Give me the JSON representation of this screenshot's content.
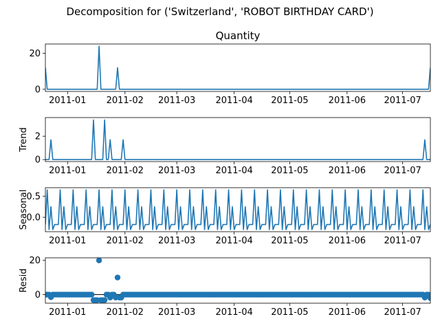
{
  "figure": {
    "suptitle": "Decomposition for ('Switzerland', 'ROBOT BIRTHDAY CARD')",
    "line_color": "#1f77b4"
  },
  "chart_data": [
    {
      "type": "line",
      "title": "Quantity",
      "ylabel": "",
      "x_range": [
        "2010-12-20",
        "2011-07-16"
      ],
      "ylim": [
        -1.2,
        25.2
      ],
      "yticks": [
        0,
        20
      ],
      "xticks": [
        "2011-01",
        "2011-02",
        "2011-03",
        "2011-04",
        "2011-05",
        "2011-06",
        "2011-07"
      ],
      "series_note_default": 0,
      "points": [
        [
          "2010-12-20",
          12
        ],
        [
          "2010-12-21",
          0
        ],
        [
          "2011-01-17",
          0
        ],
        [
          "2011-01-18",
          24
        ],
        [
          "2011-01-19",
          0
        ],
        [
          "2011-01-27",
          0
        ],
        [
          "2011-01-28",
          12
        ],
        [
          "2011-01-29",
          0
        ],
        [
          "2011-07-15",
          0
        ],
        [
          "2011-07-16",
          12
        ]
      ]
    },
    {
      "type": "line",
      "title": "",
      "ylabel": "Trend",
      "x_range": [
        "2010-12-20",
        "2011-07-16"
      ],
      "ylim": [
        -0.17,
        3.6
      ],
      "yticks": [
        0,
        2
      ],
      "xticks": [
        "2011-01",
        "2011-02",
        "2011-03",
        "2011-04",
        "2011-05",
        "2011-06",
        "2011-07"
      ],
      "points": [
        [
          "2010-12-23",
          1.7
        ],
        [
          "2010-12-24",
          0
        ],
        [
          "2011-01-14",
          0
        ],
        [
          "2011-01-15",
          3.4
        ],
        [
          "2011-01-21",
          3.4
        ],
        [
          "2011-01-22",
          0
        ],
        [
          "2011-01-23",
          0
        ],
        [
          "2011-01-24",
          1.7
        ],
        [
          "2011-01-31",
          1.7
        ],
        [
          "2011-02-01",
          0
        ],
        [
          "2011-07-12",
          0
        ],
        [
          "2011-07-13",
          1.7
        ]
      ]
    },
    {
      "type": "line",
      "title": "",
      "ylabel": "Seasonal",
      "x_range": [
        "2010-12-20",
        "2011-07-16"
      ],
      "ylim": [
        -0.34,
        0.7
      ],
      "yticks": [
        0.0,
        0.5
      ],
      "ytick_labels": [
        "0.0",
        "0.5"
      ],
      "xticks": [
        "2011-01",
        "2011-02",
        "2011-03",
        "2011-04",
        "2011-05",
        "2011-06",
        "2011-07"
      ],
      "period_days": 7,
      "period_start": "2010-12-20",
      "period_values": [
        -0.17,
        0.65,
        -0.29,
        0.25,
        -0.29,
        -0.17,
        -0.17
      ]
    },
    {
      "type": "scatter",
      "title": "",
      "ylabel": "Resid",
      "x_range": [
        "2010-12-20",
        "2011-07-16"
      ],
      "ylim": [
        -5,
        21.5
      ],
      "yticks": [
        0,
        20
      ],
      "xticks": [
        "2011-01",
        "2011-02",
        "2011-03",
        "2011-04",
        "2011-05",
        "2011-06",
        "2011-07"
      ],
      "zero_line": true,
      "default_value": 0,
      "points": [
        [
          "2010-12-23",
          -1.5
        ],
        [
          "2011-01-15",
          -3.2
        ],
        [
          "2011-01-16",
          -3.2
        ],
        [
          "2011-01-17",
          -3.2
        ],
        [
          "2011-01-18",
          20
        ],
        [
          "2011-01-19",
          -3.2
        ],
        [
          "2011-01-20",
          -3.2
        ],
        [
          "2011-01-21",
          -3.2
        ],
        [
          "2011-01-22",
          0
        ],
        [
          "2011-01-23",
          0
        ],
        [
          "2011-01-24",
          -1.7
        ],
        [
          "2011-01-27",
          -1.7
        ],
        [
          "2011-01-28",
          10
        ],
        [
          "2011-01-29",
          -1.7
        ],
        [
          "2011-01-30",
          -1.7
        ],
        [
          "2011-07-13",
          -1.7
        ],
        [
          "2011-07-16",
          -2.0
        ]
      ]
    }
  ]
}
